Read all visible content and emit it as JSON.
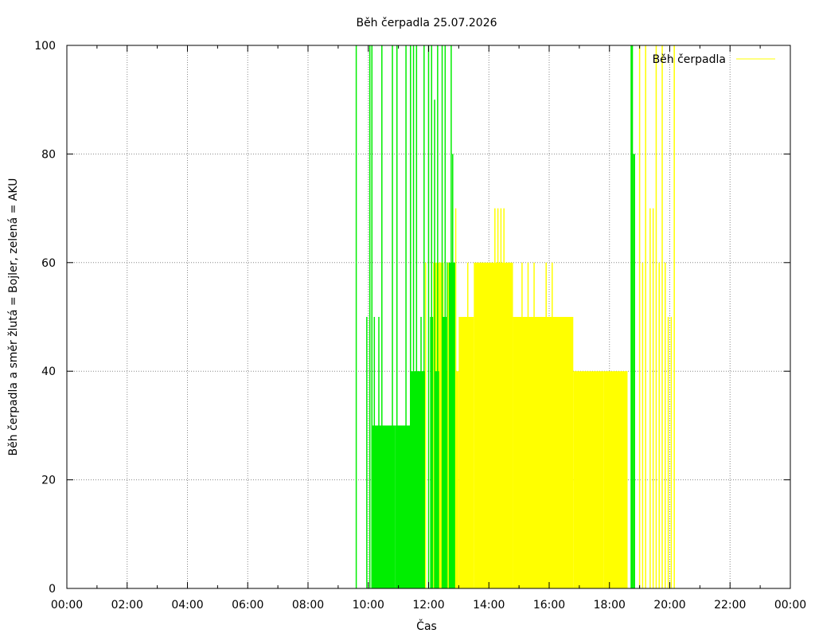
{
  "chart_data": {
    "type": "bar",
    "title": "Běh čerpadla 25.07.2026",
    "xlabel": "Čas",
    "ylabel": "Běh čerpadla a směr žlutá = Bojler, zelená = AKU",
    "xlim": [
      0,
      24
    ],
    "ylim": [
      0,
      100
    ],
    "x_ticks": [
      "00:00",
      "02:00",
      "04:00",
      "06:00",
      "08:00",
      "10:00",
      "12:00",
      "14:00",
      "16:00",
      "18:00",
      "20:00",
      "22:00",
      "00:00"
    ],
    "y_ticks": [
      0,
      20,
      40,
      60,
      80,
      100
    ],
    "grid": true,
    "legend": {
      "position": "top-right",
      "label": "Běh čerpadla"
    },
    "colors": {
      "yellow": "#ffff00",
      "green": "#00ee00"
    },
    "series": [
      {
        "name": "zelená = AKU",
        "color": "#00ee00",
        "spikes": [
          [
            9.6,
            100
          ],
          [
            9.95,
            50
          ],
          [
            10.05,
            100
          ],
          [
            10.12,
            100
          ],
          [
            10.2,
            50
          ],
          [
            10.35,
            50
          ],
          [
            10.45,
            100
          ],
          [
            10.8,
            100
          ],
          [
            10.95,
            100
          ],
          [
            11.25,
            100
          ],
          [
            11.4,
            100
          ],
          [
            11.5,
            100
          ],
          [
            11.6,
            100
          ],
          [
            11.75,
            50
          ],
          [
            11.85,
            100
          ],
          [
            12.0,
            100
          ],
          [
            12.1,
            100
          ],
          [
            12.2,
            90
          ],
          [
            12.3,
            100
          ],
          [
            12.45,
            100
          ],
          [
            12.55,
            100
          ],
          [
            12.75,
            100
          ],
          [
            12.8,
            80
          ]
        ],
        "blocks": [
          [
            10.1,
            10.45,
            30
          ],
          [
            10.45,
            10.9,
            30
          ],
          [
            10.9,
            11.4,
            30
          ],
          [
            11.4,
            11.9,
            40
          ],
          [
            12.05,
            12.15,
            50
          ],
          [
            12.2,
            12.35,
            40
          ],
          [
            12.45,
            12.6,
            50
          ],
          [
            12.6,
            12.9,
            60
          ],
          [
            18.7,
            18.78,
            100
          ],
          [
            18.78,
            18.85,
            80
          ]
        ]
      },
      {
        "name": "žlutá = Bojler",
        "color": "#ffff00",
        "spikes": [
          [
            11.9,
            60
          ],
          [
            12.4,
            60
          ],
          [
            12.65,
            60
          ],
          [
            12.9,
            70
          ],
          [
            13.3,
            60
          ],
          [
            13.6,
            60
          ],
          [
            13.75,
            60
          ],
          [
            14.2,
            70
          ],
          [
            14.3,
            70
          ],
          [
            14.4,
            70
          ],
          [
            14.5,
            70
          ],
          [
            15.1,
            60
          ],
          [
            15.3,
            60
          ],
          [
            15.5,
            60
          ],
          [
            15.9,
            60
          ],
          [
            16.1,
            60
          ],
          [
            16.4,
            50
          ],
          [
            16.75,
            50
          ],
          [
            18.0,
            40
          ],
          [
            18.2,
            40
          ],
          [
            18.4,
            40
          ],
          [
            18.55,
            40
          ],
          [
            19.0,
            100
          ],
          [
            19.1,
            60
          ],
          [
            19.2,
            100
          ],
          [
            19.35,
            70
          ],
          [
            19.45,
            70
          ],
          [
            19.55,
            100
          ],
          [
            19.65,
            60
          ],
          [
            19.75,
            100
          ],
          [
            19.85,
            60
          ],
          [
            19.95,
            50
          ],
          [
            20.05,
            50
          ],
          [
            20.15,
            100
          ]
        ],
        "blocks": [
          [
            12.15,
            12.5,
            60
          ],
          [
            12.5,
            13.0,
            40
          ],
          [
            13.0,
            13.5,
            50
          ],
          [
            13.5,
            14.8,
            60
          ],
          [
            14.8,
            16.8,
            50
          ],
          [
            16.8,
            17.8,
            40
          ],
          [
            17.8,
            18.6,
            40
          ],
          [
            18.0,
            18.6,
            30
          ]
        ]
      }
    ]
  }
}
